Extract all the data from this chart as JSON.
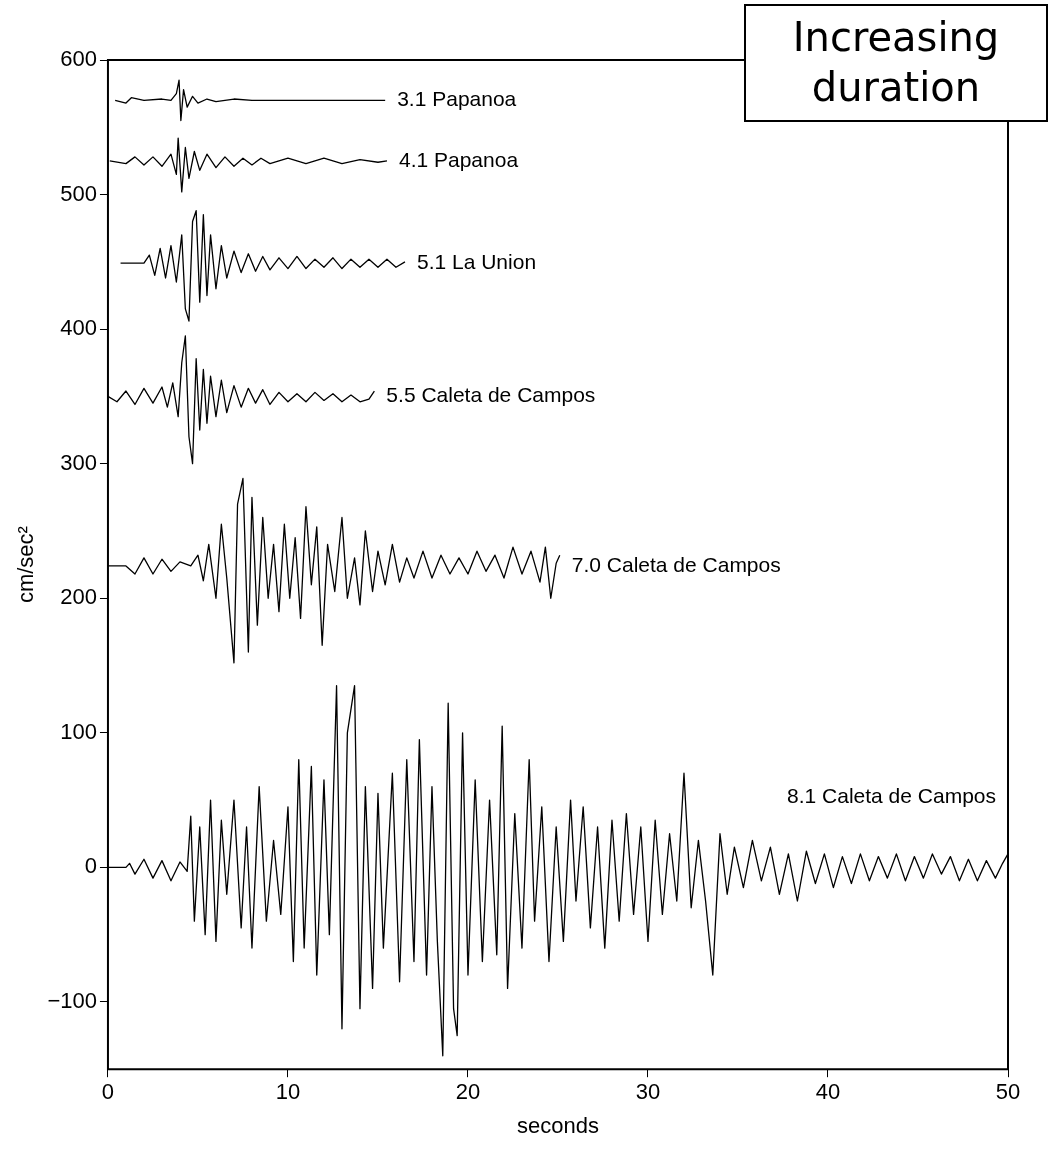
{
  "chart_data": {
    "type": "line",
    "xlabel": "seconds",
    "ylabel": "cm/sec²",
    "xlim": [
      0,
      50
    ],
    "xticks": [
      0,
      10,
      20,
      30,
      40,
      50
    ],
    "ylim": [
      -150,
      600
    ],
    "yticks": [
      -100,
      0,
      100,
      200,
      300,
      400,
      500,
      600
    ],
    "grid": false,
    "legend": false,
    "marker": "none",
    "line_style": "solid",
    "annotations": [
      "Increasing duration"
    ],
    "series": [
      {
        "name": "3.1 Papanoa",
        "color": "#000000",
        "x": [
          0.4,
          1,
          1.3,
          2,
          3,
          3.5,
          3.8,
          3.95,
          4.05,
          4.2,
          4.4,
          4.7,
          5,
          5.5,
          6,
          7,
          8,
          10,
          12,
          15.4
        ],
        "values": [
          570,
          568,
          572,
          570,
          571,
          570,
          575,
          585,
          555,
          578,
          565,
          573,
          568,
          571,
          569,
          571,
          570,
          570,
          570,
          570
        ]
      },
      {
        "name": "4.1 Papanoa",
        "color": "#000000",
        "x": [
          0.1,
          1,
          1.5,
          2,
          2.5,
          3,
          3.5,
          3.8,
          3.9,
          4.1,
          4.3,
          4.5,
          4.8,
          5.1,
          5.5,
          6,
          6.5,
          7,
          7.5,
          8,
          8.5,
          9,
          10,
          11,
          12,
          13,
          14,
          15,
          15.5
        ],
        "values": [
          525,
          523,
          528,
          522,
          528,
          521,
          530,
          515,
          542,
          502,
          535,
          512,
          532,
          518,
          530,
          520,
          528,
          521,
          527,
          522,
          527,
          523,
          527,
          523,
          527,
          523,
          526,
          524,
          525
        ]
      },
      {
        "name": "5.1 La Union",
        "color": "#000000",
        "x": [
          0.7,
          2,
          2.3,
          2.6,
          2.9,
          3.2,
          3.5,
          3.8,
          4.1,
          4.3,
          4.5,
          4.7,
          4.9,
          5.1,
          5.3,
          5.5,
          5.7,
          6,
          6.3,
          6.6,
          7,
          7.4,
          7.8,
          8.2,
          8.6,
          9,
          9.5,
          10,
          10.5,
          11,
          11.5,
          12,
          12.5,
          13,
          13.5,
          14,
          14.5,
          15,
          15.5,
          16,
          16.5
        ],
        "values": [
          449,
          449,
          455,
          440,
          460,
          438,
          462,
          435,
          470,
          415,
          406,
          480,
          488,
          420,
          485,
          425,
          470,
          430,
          462,
          438,
          458,
          442,
          456,
          443,
          454,
          444,
          453,
          445,
          454,
          445,
          452,
          446,
          453,
          445,
          452,
          446,
          452,
          446,
          452,
          446,
          450
        ]
      },
      {
        "name": "5.5 Caleta de Campos",
        "color": "#000000",
        "x": [
          0,
          0.5,
          1,
          1.5,
          2,
          2.5,
          3,
          3.3,
          3.6,
          3.9,
          4.1,
          4.3,
          4.5,
          4.7,
          4.9,
          5.1,
          5.3,
          5.5,
          5.7,
          6,
          6.3,
          6.6,
          7,
          7.4,
          7.8,
          8.2,
          8.6,
          9,
          9.5,
          10,
          10.5,
          11,
          11.5,
          12,
          12.5,
          13,
          13.5,
          14,
          14.5,
          14.8
        ],
        "values": [
          350,
          346,
          354,
          344,
          356,
          345,
          357,
          342,
          360,
          335,
          375,
          395,
          320,
          300,
          378,
          325,
          370,
          330,
          365,
          335,
          362,
          338,
          358,
          342,
          356,
          345,
          355,
          344,
          353,
          346,
          352,
          346,
          353,
          347,
          352,
          346,
          351,
          346,
          348,
          354
        ]
      },
      {
        "name": "7.0 Caleta de Campos",
        "color": "#000000",
        "x": [
          0,
          1,
          1.5,
          2,
          2.5,
          3,
          3.5,
          4,
          4.6,
          5,
          5.3,
          5.6,
          6,
          6.3,
          6.6,
          7,
          7.2,
          7.5,
          7.8,
          8,
          8.3,
          8.6,
          8.9,
          9.2,
          9.5,
          9.8,
          10.1,
          10.4,
          10.7,
          11,
          11.3,
          11.6,
          11.9,
          12.2,
          12.6,
          13,
          13.3,
          13.7,
          14,
          14.3,
          14.7,
          15,
          15.4,
          15.8,
          16.2,
          16.6,
          17,
          17.5,
          18,
          18.5,
          19,
          19.5,
          20,
          20.5,
          21,
          21.5,
          22,
          22.5,
          23,
          23.5,
          24,
          24.3,
          24.6,
          24.9,
          25.1
        ],
        "values": [
          224,
          224,
          218,
          230,
          218,
          229,
          220,
          227,
          224,
          232,
          213,
          240,
          200,
          255,
          215,
          152,
          270,
          289,
          160,
          275,
          180,
          260,
          200,
          240,
          190,
          255,
          200,
          245,
          185,
          268,
          210,
          253,
          165,
          240,
          205,
          260,
          200,
          230,
          195,
          250,
          205,
          235,
          210,
          240,
          212,
          230,
          215,
          235,
          215,
          232,
          218,
          230,
          218,
          235,
          220,
          232,
          215,
          238,
          218,
          235,
          212,
          238,
          200,
          226,
          232
        ]
      },
      {
        "name": "8.1 Caleta de Campos",
        "color": "#000000",
        "x": [
          0,
          1,
          1.2,
          1.5,
          2,
          2.5,
          3,
          3.5,
          4,
          4.4,
          4.6,
          4.8,
          5.1,
          5.4,
          5.7,
          6,
          6.3,
          6.6,
          7,
          7.4,
          7.7,
          8,
          8.4,
          8.8,
          9.2,
          9.6,
          10,
          10.3,
          10.6,
          10.9,
          11.3,
          11.6,
          12,
          12.3,
          12.7,
          13,
          13.3,
          13.7,
          14,
          14.3,
          14.7,
          15,
          15.3,
          15.8,
          16.2,
          16.6,
          17,
          17.3,
          17.7,
          18,
          18.3,
          18.6,
          18.9,
          19.2,
          19.4,
          19.7,
          20,
          20.4,
          20.8,
          21.2,
          21.6,
          21.9,
          22.2,
          22.6,
          23,
          23.4,
          23.7,
          24.1,
          24.5,
          24.9,
          25.3,
          25.7,
          26,
          26.4,
          26.8,
          27.2,
          27.6,
          28,
          28.4,
          28.8,
          29.2,
          29.6,
          30,
          30.4,
          30.8,
          31.2,
          31.6,
          32,
          32.4,
          32.8,
          33.2,
          33.6,
          34,
          34.4,
          34.8,
          35.3,
          35.8,
          36.3,
          36.8,
          37.3,
          37.8,
          38.3,
          38.8,
          39.3,
          39.8,
          40.3,
          40.8,
          41.3,
          41.8,
          42.3,
          42.8,
          43.3,
          43.8,
          44.3,
          44.8,
          45.3,
          45.8,
          46.3,
          46.8,
          47.3,
          47.8,
          48.3,
          48.8,
          49.3,
          49.7,
          50
        ],
        "values": [
          0,
          0,
          3,
          -5,
          6,
          -8,
          5,
          -10,
          4,
          -3,
          38,
          -40,
          30,
          -50,
          50,
          -55,
          35,
          -20,
          50,
          -45,
          30,
          -60,
          60,
          -40,
          20,
          -35,
          45,
          -70,
          80,
          -60,
          75,
          -80,
          65,
          -50,
          135,
          -120,
          100,
          135,
          -105,
          60,
          -90,
          55,
          -60,
          70,
          -85,
          80,
          -70,
          95,
          -80,
          60,
          -55,
          -140,
          122,
          -105,
          -125,
          100,
          -80,
          65,
          -70,
          50,
          -65,
          105,
          -90,
          40,
          -60,
          80,
          -40,
          45,
          -70,
          30,
          -55,
          50,
          -25,
          45,
          -45,
          30,
          -60,
          35,
          -40,
          40,
          -35,
          30,
          -55,
          35,
          -35,
          25,
          -25,
          70,
          -30,
          20,
          -25,
          -80,
          25,
          -20,
          15,
          -15,
          20,
          -10,
          15,
          -20,
          10,
          -25,
          12,
          -12,
          10,
          -15,
          8,
          -12,
          10,
          -10,
          8,
          -8,
          10,
          -10,
          8,
          -8,
          10,
          -5,
          8,
          -10,
          6,
          -10,
          5,
          -8,
          3,
          10
        ]
      }
    ]
  }
}
